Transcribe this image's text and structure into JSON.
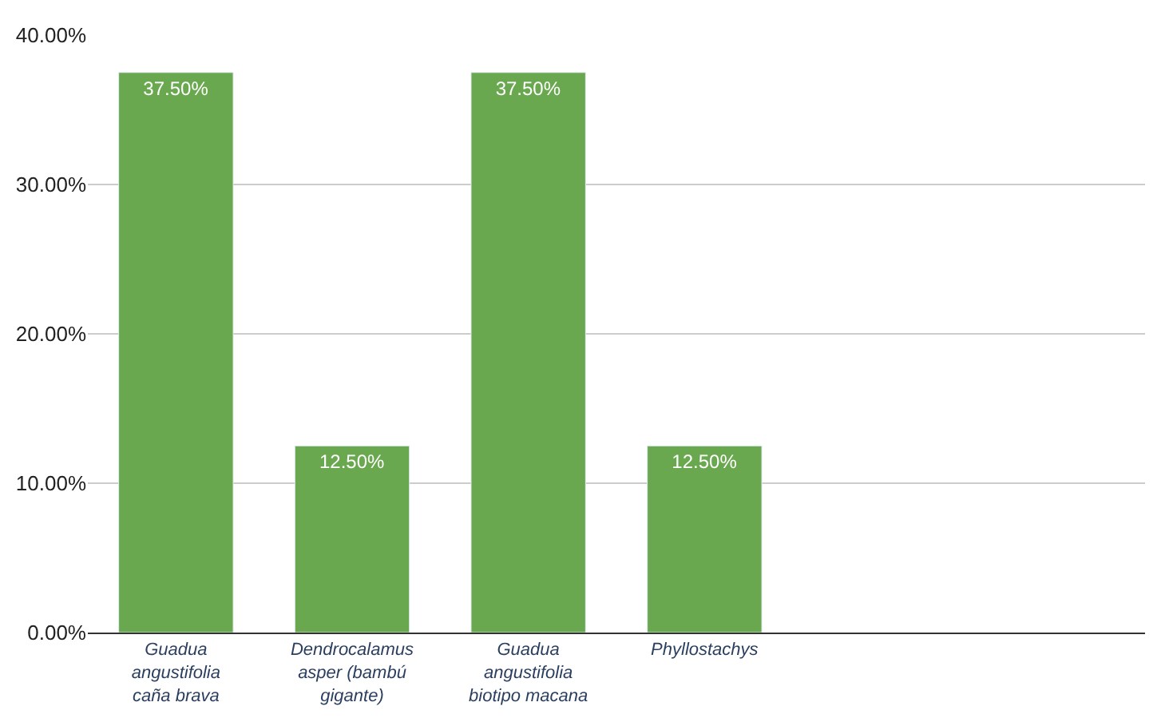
{
  "chart_data": {
    "type": "bar",
    "categories": [
      "Guadua angustifolia caña brava",
      "Dendrocalamus asper (bambú gigante)",
      "Guadua angustifolia biotipo macana",
      "Phyllostachys",
      null,
      null
    ],
    "values": [
      37.5,
      12.5,
      37.5,
      12.5,
      null,
      null
    ],
    "color": "#6aa84f",
    "value_labels": [
      "37.50%",
      "12.50%",
      "37.50%",
      "12.50%",
      null,
      null
    ],
    "ylim": [
      0,
      40
    ],
    "yticks": [
      {
        "value": 0,
        "label": "0.00%"
      },
      {
        "value": 10,
        "label": "10.00%"
      },
      {
        "value": 20,
        "label": "20.00%"
      },
      {
        "value": 30,
        "label": "30.00%"
      },
      {
        "value": 40,
        "label": "40.00%"
      }
    ],
    "grid": "y",
    "legend": false
  }
}
